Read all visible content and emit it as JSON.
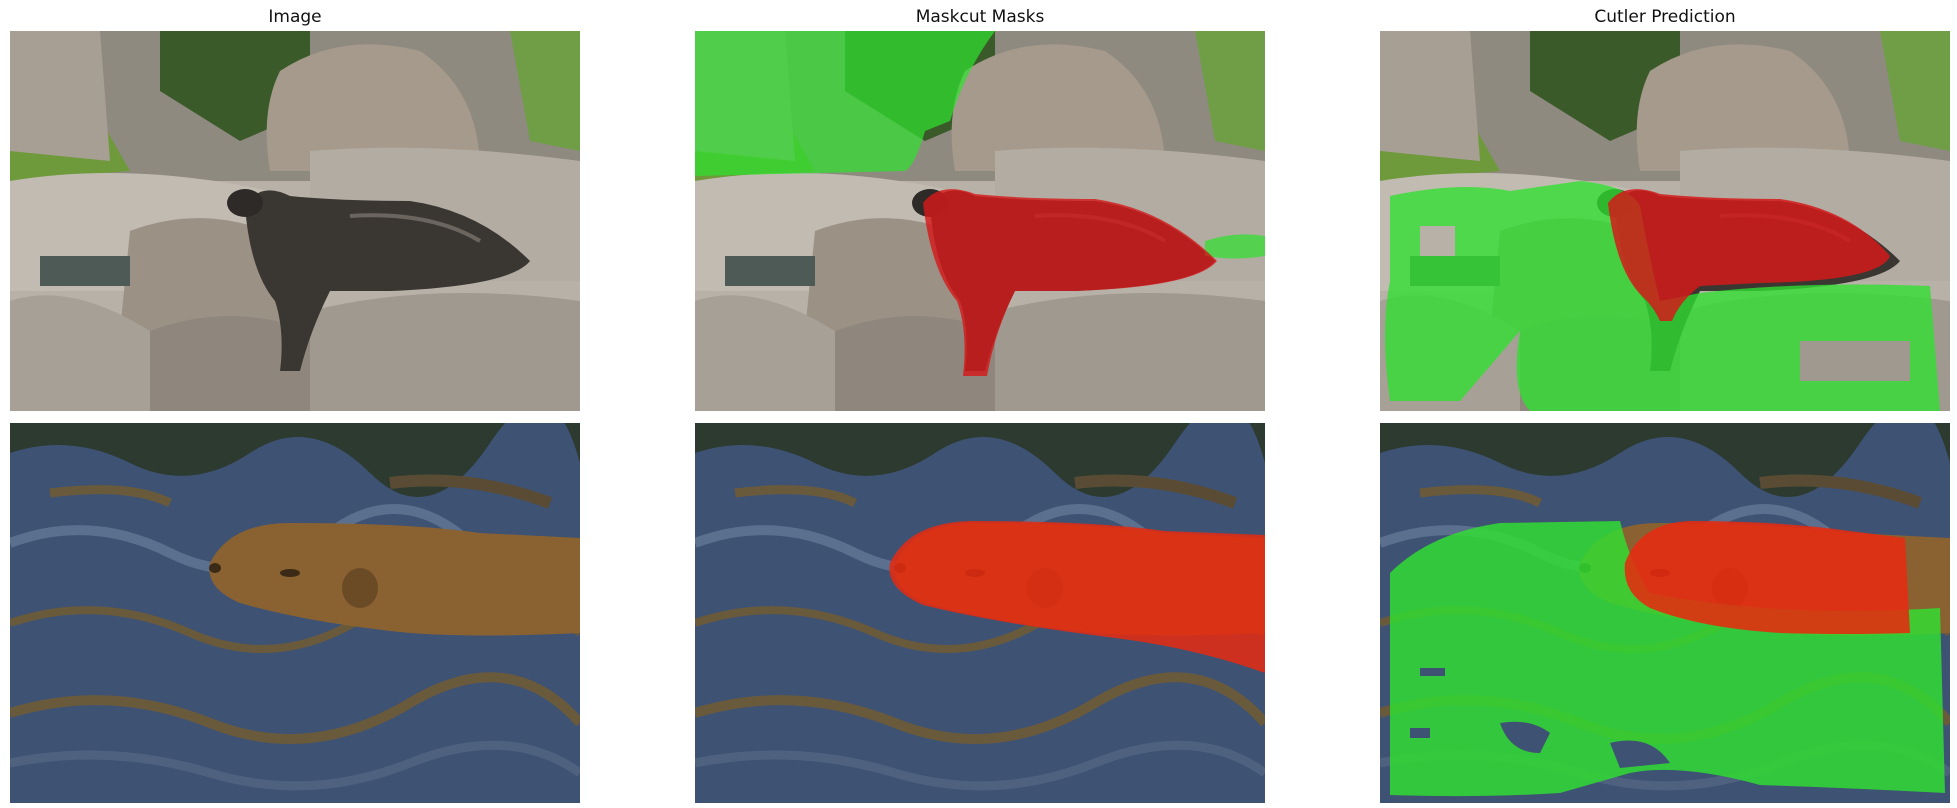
{
  "columns": [
    {
      "title": "Image"
    },
    {
      "title": "Maskcut Masks"
    },
    {
      "title": "Cutler Prediction"
    }
  ],
  "rows": [
    {
      "subject": "sea lion on rocks"
    },
    {
      "subject": "capybara swimming in water"
    }
  ],
  "colors": {
    "mask_red": "#d41a1a",
    "mask_green": "#2fe02f"
  }
}
